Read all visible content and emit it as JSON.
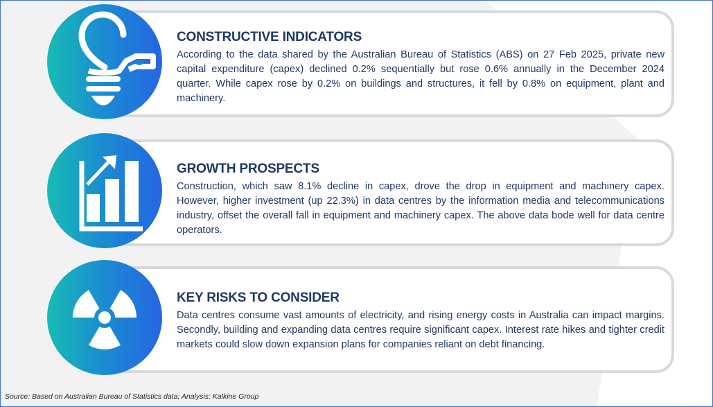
{
  "sections": [
    {
      "icon": "lightbulb-icon",
      "title": "CONSTRUCTIVE INDICATORS",
      "body": "According to the data shared by the Australian Bureau of Statistics (ABS) on 27 Feb 2025, private new capital expenditure (capex) declined 0.2% sequentially but rose 0.6% annually in the December 2024 quarter. While capex rose by 0.2% on buildings and structures, it fell by 0.8% on equipment, plant and machinery."
    },
    {
      "icon": "growth-chart-icon",
      "title": "GROWTH PROSPECTS",
      "body": "Construction, which saw 8.1% decline in capex, drove the drop in equipment and machinery capex. However, higher investment (up 22.3%) in data centres by the information media and telecommunications industry, offset the overall fall in equipment and machinery capex. The above data bode well for data centre operators."
    },
    {
      "icon": "radiation-hazard-icon",
      "title": "KEY RISKS TO CONSIDER",
      "body": "Data centres consume vast amounts of electricity, and rising energy costs in Australia can impact margins. Secondly, building and expanding data centres require significant capex. Interest rate hikes and tighter credit markets could slow down expansion plans for companies reliant on debt financing."
    }
  ],
  "source": "Source: Based on Australian Bureau of Statistics data; Analysis: Kalkine Group",
  "colors": {
    "text": "#1f3864",
    "border": "#d9d9d9",
    "gradient_start": "#17bcb4",
    "gradient_end": "#2466e3",
    "frame": "#4472c4"
  }
}
